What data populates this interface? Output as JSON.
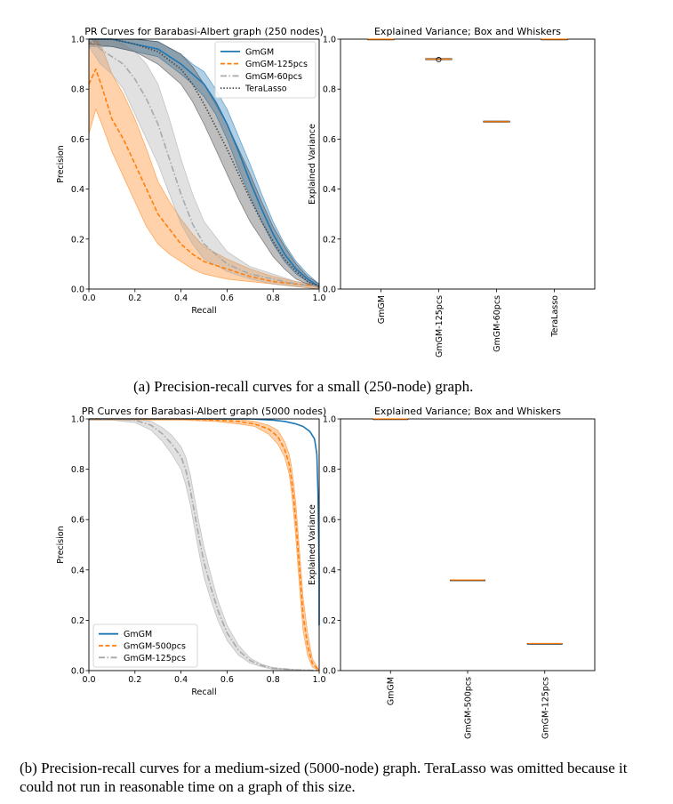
{
  "captions": {
    "a": "(a) Precision-recall curves for a small (250-node) graph.",
    "b": "(b) Precision-recall curves for a medium-sized (5000-node) graph. TeraLasso was omitted because it could not run in reasonable time on a graph of this size."
  },
  "colors": {
    "blue": "#1f77b4",
    "orange": "#ff7f0e",
    "gray": "#a9a9a9",
    "dark": "#444444"
  },
  "chart_data": [
    {
      "id": "pr250",
      "type": "line",
      "title": "PR Curves for Barabasi-Albert graph (250 nodes)",
      "xlabel": "Recall",
      "ylabel": "Precision",
      "xlim": [
        0,
        1
      ],
      "ylim": [
        0,
        1
      ],
      "xticks": [
        0.0,
        0.2,
        0.4,
        0.6,
        0.8,
        1.0
      ],
      "yticks": [
        0.0,
        0.2,
        0.4,
        0.6,
        0.8,
        1.0
      ],
      "xticklabels": [
        "0.0",
        "0.2",
        "0.4",
        "0.6",
        "0.8",
        "1.0"
      ],
      "yticklabels": [
        "0.0",
        "0.2",
        "0.4",
        "0.6",
        "0.8",
        "1.0"
      ],
      "legend_position": "top-right",
      "series": [
        {
          "name": "GmGM",
          "color": "#1f77b4",
          "style": "solid",
          "x": [
            0,
            0.1,
            0.2,
            0.3,
            0.4,
            0.45,
            0.5,
            0.55,
            0.6,
            0.65,
            0.7,
            0.75,
            0.8,
            0.85,
            0.9,
            0.95,
            1.0
          ],
          "y": [
            1.0,
            1.0,
            0.98,
            0.96,
            0.9,
            0.86,
            0.82,
            0.75,
            0.66,
            0.55,
            0.43,
            0.32,
            0.22,
            0.14,
            0.08,
            0.04,
            0.01
          ],
          "lower": [
            0.97,
            0.97,
            0.95,
            0.93,
            0.86,
            0.82,
            0.77,
            0.7,
            0.6,
            0.48,
            0.37,
            0.27,
            0.18,
            0.11,
            0.06,
            0.03,
            0.005
          ],
          "upper": [
            1.0,
            1.0,
            1.0,
            0.99,
            0.94,
            0.9,
            0.87,
            0.8,
            0.72,
            0.61,
            0.5,
            0.38,
            0.27,
            0.18,
            0.11,
            0.06,
            0.02
          ]
        },
        {
          "name": "GmGM-125pcs",
          "color": "#ff7f0e",
          "style": "dashed",
          "x": [
            0,
            0.03,
            0.06,
            0.1,
            0.15,
            0.2,
            0.25,
            0.3,
            0.35,
            0.4,
            0.45,
            0.5,
            0.6,
            0.7,
            0.8,
            0.9,
            1.0
          ],
          "y": [
            0.82,
            0.88,
            0.8,
            0.68,
            0.6,
            0.5,
            0.4,
            0.3,
            0.24,
            0.18,
            0.14,
            0.11,
            0.08,
            0.05,
            0.03,
            0.02,
            0.01
          ],
          "lower": [
            0.62,
            0.72,
            0.65,
            0.55,
            0.45,
            0.35,
            0.25,
            0.18,
            0.14,
            0.11,
            0.08,
            0.06,
            0.04,
            0.03,
            0.02,
            0.01,
            0.0
          ],
          "upper": [
            0.98,
            1.0,
            0.96,
            0.86,
            0.78,
            0.68,
            0.56,
            0.43,
            0.35,
            0.28,
            0.22,
            0.17,
            0.12,
            0.08,
            0.05,
            0.03,
            0.015
          ]
        },
        {
          "name": "GmGM-60pcs",
          "color": "#a9a9a9",
          "style": "dashdot",
          "x": [
            0,
            0.05,
            0.1,
            0.15,
            0.2,
            0.25,
            0.3,
            0.35,
            0.4,
            0.45,
            0.5,
            0.6,
            0.7,
            0.8,
            0.9,
            1.0
          ],
          "y": [
            1.0,
            0.96,
            0.93,
            0.9,
            0.84,
            0.76,
            0.66,
            0.52,
            0.38,
            0.26,
            0.18,
            0.1,
            0.06,
            0.04,
            0.02,
            0.01
          ],
          "lower": [
            0.97,
            0.9,
            0.86,
            0.8,
            0.7,
            0.6,
            0.5,
            0.38,
            0.26,
            0.18,
            0.12,
            0.07,
            0.04,
            0.02,
            0.01,
            0.0
          ],
          "upper": [
            1.0,
            1.0,
            1.0,
            0.98,
            0.95,
            0.9,
            0.82,
            0.68,
            0.52,
            0.38,
            0.27,
            0.15,
            0.09,
            0.06,
            0.03,
            0.015
          ]
        },
        {
          "name": "TeraLasso",
          "color": "#444444",
          "style": "dotted",
          "x": [
            0,
            0.1,
            0.2,
            0.3,
            0.4,
            0.45,
            0.5,
            0.55,
            0.6,
            0.65,
            0.7,
            0.75,
            0.8,
            0.85,
            0.9,
            0.95,
            1.0
          ],
          "y": [
            1.0,
            1.0,
            0.98,
            0.95,
            0.88,
            0.82,
            0.74,
            0.65,
            0.56,
            0.46,
            0.36,
            0.27,
            0.19,
            0.12,
            0.07,
            0.03,
            0.01
          ],
          "lower": [
            0.98,
            0.97,
            0.95,
            0.9,
            0.82,
            0.75,
            0.66,
            0.56,
            0.46,
            0.36,
            0.27,
            0.2,
            0.13,
            0.08,
            0.04,
            0.02,
            0.005
          ],
          "upper": [
            1.0,
            1.0,
            1.0,
            0.99,
            0.94,
            0.89,
            0.82,
            0.74,
            0.66,
            0.56,
            0.46,
            0.35,
            0.25,
            0.17,
            0.1,
            0.05,
            0.02
          ]
        }
      ]
    },
    {
      "id": "box250",
      "type": "box",
      "title": "Explained Variance; Box and Whiskers",
      "ylabel": "Explained Variance",
      "ylim": [
        0,
        1
      ],
      "yticks": [
        0.0,
        0.2,
        0.4,
        0.6,
        0.8,
        1.0
      ],
      "yticklabels": [
        "0.0",
        "0.2",
        "0.4",
        "0.6",
        "0.8",
        "1.0"
      ],
      "categories": [
        "GmGM",
        "GmGM-125pcs",
        "GmGM-60pcs",
        "TeraLasso"
      ],
      "boxes": [
        {
          "q1": 1.0,
          "median": 1.0,
          "q3": 1.0,
          "whisker_low": 1.0,
          "whisker_high": 1.0,
          "outliers": []
        },
        {
          "q1": 0.918,
          "median": 0.92,
          "q3": 0.922,
          "whisker_low": 0.916,
          "whisker_high": 0.924,
          "outliers": [
            0.918
          ]
        },
        {
          "q1": 0.668,
          "median": 0.67,
          "q3": 0.672,
          "whisker_low": 0.667,
          "whisker_high": 0.673,
          "outliers": []
        },
        {
          "q1": 1.0,
          "median": 1.0,
          "q3": 1.0,
          "whisker_low": 1.0,
          "whisker_high": 1.0,
          "outliers": []
        }
      ]
    },
    {
      "id": "pr5000",
      "type": "line",
      "title": "PR Curves for Barabasi-Albert graph (5000 nodes)",
      "xlabel": "Recall",
      "ylabel": "Precision",
      "xlim": [
        0,
        1
      ],
      "ylim": [
        0,
        1
      ],
      "xticks": [
        0.0,
        0.2,
        0.4,
        0.6,
        0.8,
        1.0
      ],
      "yticks": [
        0.0,
        0.2,
        0.4,
        0.6,
        0.8,
        1.0
      ],
      "xticklabels": [
        "0.0",
        "0.2",
        "0.4",
        "0.6",
        "0.8",
        "1.0"
      ],
      "yticklabels": [
        "0.0",
        "0.2",
        "0.4",
        "0.6",
        "0.8",
        "1.0"
      ],
      "legend_position": "bottom-left",
      "series": [
        {
          "name": "GmGM",
          "color": "#1f77b4",
          "style": "solid",
          "x": [
            0,
            0.5,
            0.7,
            0.8,
            0.85,
            0.9,
            0.93,
            0.96,
            0.98,
            0.99,
            0.995,
            1.0,
            1.0
          ],
          "y": [
            1.0,
            1.0,
            1.0,
            0.995,
            0.99,
            0.98,
            0.97,
            0.95,
            0.92,
            0.86,
            0.7,
            0.4,
            0.18
          ],
          "lower": [],
          "upper": []
        },
        {
          "name": "GmGM-500pcs",
          "color": "#ff7f0e",
          "style": "dashed",
          "x": [
            0,
            0.4,
            0.55,
            0.65,
            0.72,
            0.78,
            0.82,
            0.85,
            0.87,
            0.88,
            0.89,
            0.9,
            0.91,
            0.92,
            0.93,
            0.95,
            0.97,
            1.0
          ],
          "y": [
            1.0,
            1.0,
            0.995,
            0.99,
            0.98,
            0.96,
            0.93,
            0.88,
            0.82,
            0.76,
            0.68,
            0.58,
            0.46,
            0.34,
            0.22,
            0.1,
            0.03,
            0.0
          ],
          "lower": [
            0.995,
            0.995,
            0.99,
            0.98,
            0.97,
            0.94,
            0.9,
            0.85,
            0.78,
            0.71,
            0.62,
            0.51,
            0.39,
            0.27,
            0.16,
            0.06,
            0.015,
            0.0
          ],
          "upper": [
            1.0,
            1.0,
            1.0,
            0.998,
            0.99,
            0.975,
            0.955,
            0.91,
            0.86,
            0.81,
            0.74,
            0.65,
            0.53,
            0.41,
            0.29,
            0.15,
            0.05,
            0.0
          ]
        },
        {
          "name": "GmGM-125pcs",
          "color": "#a9a9a9",
          "style": "dashdot",
          "x": [
            0,
            0.1,
            0.2,
            0.27,
            0.32,
            0.36,
            0.4,
            0.42,
            0.44,
            0.46,
            0.48,
            0.5,
            0.53,
            0.56,
            0.6,
            0.65,
            0.7,
            0.75,
            0.8,
            0.9,
            1.0
          ],
          "y": [
            1.0,
            1.0,
            0.995,
            0.975,
            0.94,
            0.9,
            0.85,
            0.8,
            0.72,
            0.62,
            0.52,
            0.43,
            0.33,
            0.24,
            0.15,
            0.08,
            0.04,
            0.02,
            0.01,
            0.003,
            0.0
          ],
          "lower": [
            0.995,
            0.995,
            0.985,
            0.955,
            0.91,
            0.86,
            0.8,
            0.74,
            0.66,
            0.56,
            0.46,
            0.37,
            0.28,
            0.2,
            0.12,
            0.06,
            0.03,
            0.015,
            0.005,
            0.001,
            0.0
          ],
          "upper": [
            1.0,
            1.0,
            1.0,
            0.99,
            0.965,
            0.935,
            0.89,
            0.85,
            0.78,
            0.68,
            0.58,
            0.49,
            0.38,
            0.28,
            0.18,
            0.1,
            0.05,
            0.025,
            0.012,
            0.004,
            0.0
          ]
        }
      ]
    },
    {
      "id": "box5000",
      "type": "box",
      "title": "Explained Variance; Box and Whiskers",
      "ylabel": "Explained Variance",
      "ylim": [
        0,
        1
      ],
      "yticks": [
        0.0,
        0.2,
        0.4,
        0.6,
        0.8,
        1.0
      ],
      "yticklabels": [
        "0.0",
        "0.2",
        "0.4",
        "0.6",
        "0.8",
        "1.0"
      ],
      "categories": [
        "GmGM",
        "GmGM-500pcs",
        "GmGM-125pcs"
      ],
      "boxes": [
        {
          "q1": 1.0,
          "median": 1.0,
          "q3": 1.0,
          "whisker_low": 1.0,
          "whisker_high": 1.0,
          "outliers": []
        },
        {
          "q1": 0.36,
          "median": 0.36,
          "q3": 0.36,
          "whisker_low": 0.36,
          "whisker_high": 0.36,
          "outliers": []
        },
        {
          "q1": 0.108,
          "median": 0.108,
          "q3": 0.108,
          "whisker_low": 0.108,
          "whisker_high": 0.108,
          "outliers": []
        }
      ]
    }
  ]
}
